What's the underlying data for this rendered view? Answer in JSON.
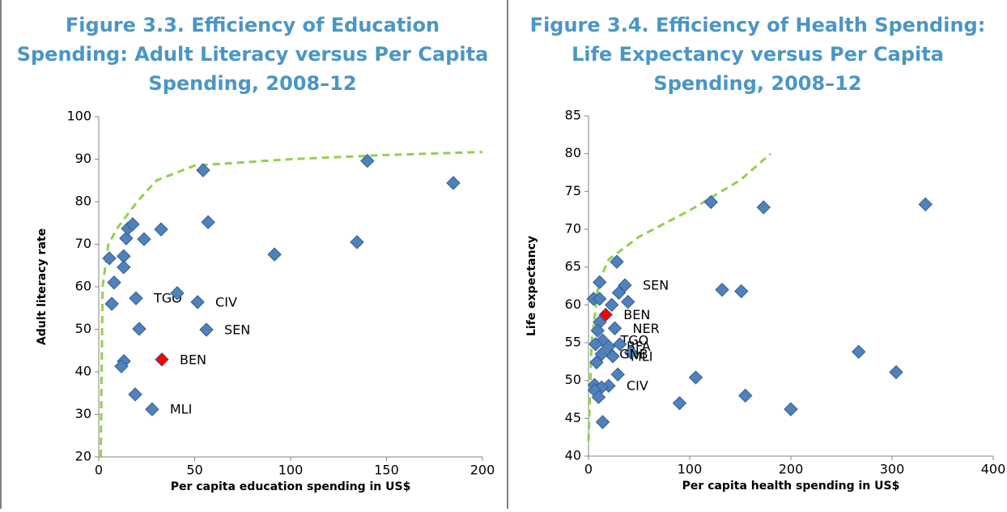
{
  "chart_data": [
    {
      "type": "scatter",
      "title": [
        "Figure 3.3. Efficiency of Education",
        "Spending: Adult Literacy versus Per Capita",
        "Spending, 2008–12"
      ],
      "xlabel": "Per capita education spending in US$",
      "ylabel": "Adult literacy rate",
      "xlim": [
        0,
        200
      ],
      "xticks": [
        0,
        50,
        100,
        150,
        200
      ],
      "ylim": [
        20,
        100
      ],
      "yticks": [
        20,
        30,
        40,
        50,
        60,
        70,
        80,
        90,
        100
      ],
      "series": [
        {
          "color": "#4f81bd",
          "x": [
            19.4,
            40.9,
            51.5,
            56.1,
            21.1,
            13.1,
            11.8,
            19,
            27.8,
            5.5,
            8,
            6.8,
            13,
            13,
            14.3,
            15.2,
            17.7,
            23.6,
            32.5,
            57,
            54.4,
            91.6,
            134.6,
            140,
            184.8
          ],
          "values": [
            57.3,
            58.5,
            56.4,
            49.9,
            50.1,
            42.5,
            41.3,
            34.7,
            31.2,
            66.7,
            61,
            56,
            67.2,
            64.6,
            71.4,
            73.7,
            74.7,
            71.2,
            73.5,
            75.2,
            87.4,
            67.6,
            70.5,
            89.6,
            84.4
          ],
          "point_labels": [
            "TGO",
            null,
            "CIV",
            "SEN",
            null,
            null,
            null,
            null,
            "MLI",
            null,
            null,
            null,
            null,
            null,
            null,
            null,
            null,
            null,
            null,
            null,
            null,
            null,
            null,
            null,
            null
          ]
        },
        {
          "color": "#ff0000",
          "x": [
            32.9
          ],
          "values": [
            42.9
          ],
          "point_labels": [
            "BEN"
          ]
        }
      ],
      "trend": {
        "color": "#92d050",
        "x": [
          1,
          2,
          5,
          10,
          20,
          30,
          50,
          100,
          150,
          200
        ],
        "values": [
          20,
          60,
          70,
          74,
          80,
          85,
          88.5,
          90,
          91,
          91.7
        ]
      }
    },
    {
      "type": "scatter",
      "title": [
        "Figure 3.4. Efficiency of Health Spending:",
        "Life Expectancy versus Per Capita",
        "Spending, 2008–12"
      ],
      "xlabel": "Per capita health spending in US$",
      "ylabel": "Life expectancy",
      "xlim": [
        0,
        400
      ],
      "xticks": [
        0,
        100,
        200,
        300,
        400
      ],
      "ylim": [
        40,
        85
      ],
      "yticks": [
        40,
        45,
        50,
        55,
        60,
        65,
        70,
        75,
        80,
        85
      ],
      "series": [
        {
          "color": "#4f81bd",
          "x": [
            11,
            28,
            36,
            30,
            39,
            23,
            5,
            11,
            11,
            9,
            26,
            14,
            7,
            20,
            31,
            24,
            42,
            13,
            8,
            29,
            6,
            20,
            13,
            6,
            10,
            14,
            90,
            106,
            132,
            151,
            121,
            173,
            155,
            200,
            267,
            304,
            333
          ],
          "values": [
            63,
            65.7,
            62.6,
            61.6,
            60.4,
            60,
            60.8,
            60.8,
            57.7,
            56.6,
            56.9,
            55.3,
            54.8,
            54.5,
            54.8,
            53.2,
            53.7,
            53.5,
            52.4,
            50.8,
            49.4,
            49.3,
            49.1,
            48.7,
            47.8,
            44.5,
            47,
            50.4,
            62,
            61.8,
            73.6,
            72.9,
            48,
            46.2,
            53.8,
            51.1,
            73.3
          ],
          "point_labels": [
            null,
            null,
            "SEN",
            null,
            null,
            null,
            null,
            null,
            null,
            null,
            "NER",
            "TGO",
            null,
            "BFA",
            null,
            "MLI",
            null,
            "GNB",
            null,
            null,
            null,
            "CIV",
            null,
            null,
            null,
            null,
            null,
            null,
            null,
            null,
            null,
            null,
            null,
            null,
            null,
            null,
            null
          ]
        },
        {
          "color": "#ff0000",
          "x": [
            17
          ],
          "values": [
            58.7
          ],
          "point_labels": [
            "BEN"
          ]
        }
      ],
      "trend": {
        "color": "#92d050",
        "x": [
          0,
          3,
          10,
          20,
          50,
          100,
          150,
          180
        ],
        "values": [
          42,
          55,
          63,
          66,
          69,
          72.5,
          76.5,
          80
        ]
      }
    }
  ]
}
